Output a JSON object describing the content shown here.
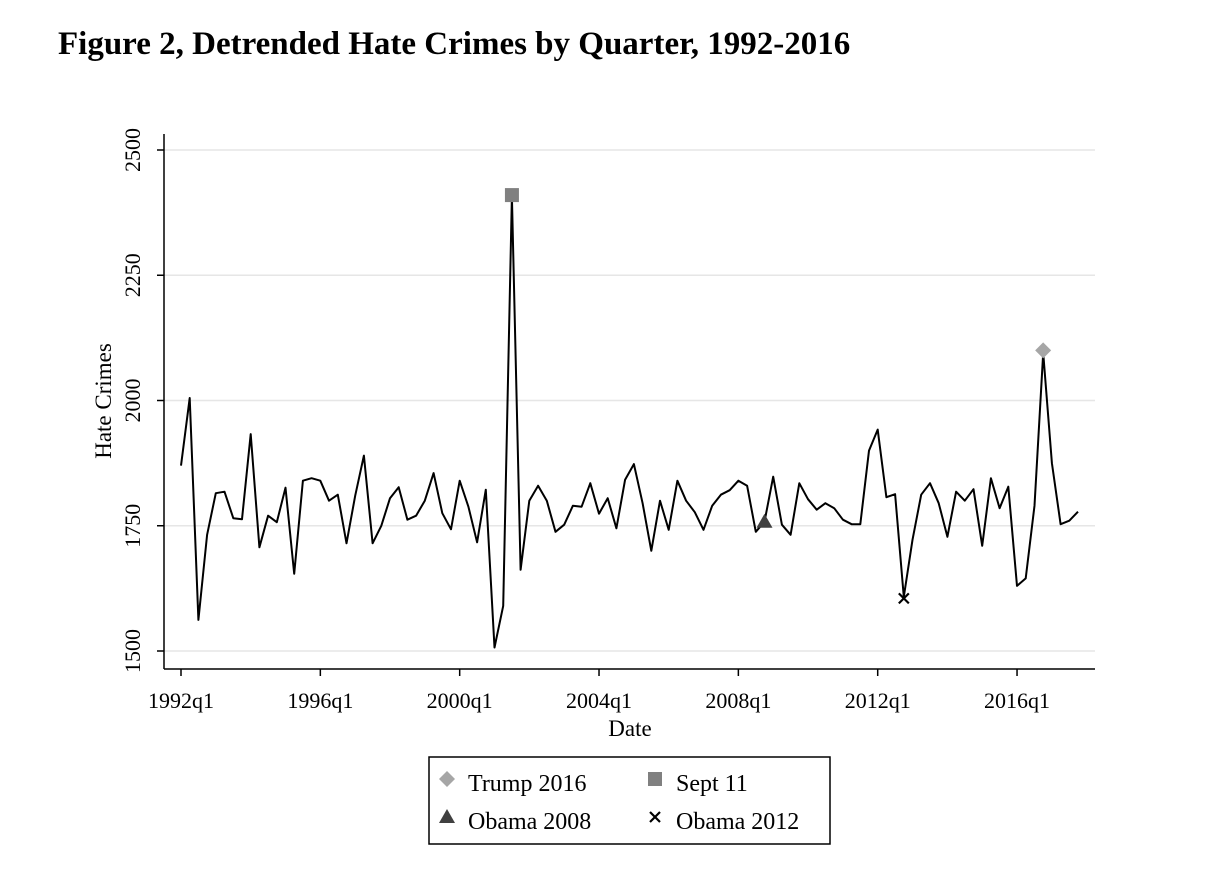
{
  "figure": {
    "title": "Figure 2, Detrended Hate Crimes by Quarter, 1992-2016"
  },
  "chart_data": {
    "type": "line",
    "title": "Figure 2, Detrended Hate Crimes by Quarter, 1992-2016",
    "xlabel": "Date",
    "ylabel": "Hate Crimes",
    "ylim": [
      1500,
      2500
    ],
    "y_ticks": [
      1500,
      1750,
      2000,
      2250,
      2500
    ],
    "x_ticks": [
      "1992q1",
      "1996q1",
      "2000q1",
      "2004q1",
      "2008q1",
      "2012q1",
      "2016q1"
    ],
    "grid": true,
    "legend_position": "bottom",
    "x": [
      "1992q1",
      "1992q2",
      "1992q3",
      "1992q4",
      "1993q1",
      "1993q2",
      "1993q3",
      "1993q4",
      "1994q1",
      "1994q2",
      "1994q3",
      "1994q4",
      "1995q1",
      "1995q2",
      "1995q3",
      "1995q4",
      "1996q1",
      "1996q2",
      "1996q3",
      "1996q4",
      "1997q1",
      "1997q2",
      "1997q3",
      "1997q4",
      "1998q1",
      "1998q2",
      "1998q3",
      "1998q4",
      "1999q1",
      "1999q2",
      "1999q3",
      "1999q4",
      "2000q1",
      "2000q2",
      "2000q3",
      "2000q4",
      "2001q1",
      "2001q2",
      "2001q3",
      "2001q4",
      "2002q1",
      "2002q2",
      "2002q3",
      "2002q4",
      "2003q1",
      "2003q2",
      "2003q3",
      "2003q4",
      "2004q1",
      "2004q2",
      "2004q3",
      "2004q4",
      "2005q1",
      "2005q2",
      "2005q3",
      "2005q4",
      "2006q1",
      "2006q2",
      "2006q3",
      "2006q4",
      "2007q1",
      "2007q2",
      "2007q3",
      "2007q4",
      "2008q1",
      "2008q2",
      "2008q3",
      "2008q4",
      "2009q1",
      "2009q2",
      "2009q3",
      "2009q4",
      "2010q1",
      "2010q2",
      "2010q3",
      "2010q4",
      "2011q1",
      "2011q2",
      "2011q3",
      "2011q4",
      "2012q1",
      "2012q2",
      "2012q3",
      "2012q4",
      "2013q1",
      "2013q2",
      "2013q3",
      "2013q4",
      "2014q1",
      "2014q2",
      "2014q3",
      "2014q4",
      "2015q1",
      "2015q2",
      "2015q3",
      "2015q4",
      "2016q1",
      "2016q2",
      "2016q3",
      "2016q4",
      "2017q1",
      "2017q2",
      "2017q3",
      "2017q4"
    ],
    "series": [
      {
        "values": [
          1870,
          2005,
          1562,
          1732,
          1815,
          1818,
          1765,
          1763,
          1933,
          1707,
          1770,
          1757,
          1826,
          1654,
          1840,
          1845,
          1840,
          1800,
          1812,
          1715,
          1810,
          1890,
          1715,
          1750,
          1805,
          1827,
          1762,
          1770,
          1800,
          1855,
          1775,
          1743,
          1840,
          1788,
          1717,
          1822,
          1507,
          1590,
          2408,
          1662,
          1800,
          1830,
          1800,
          1738,
          1752,
          1790,
          1788,
          1835,
          1774,
          1805,
          1745,
          1842,
          1873,
          1795,
          1700,
          1800,
          1742,
          1840,
          1800,
          1777,
          1742,
          1790,
          1812,
          1821,
          1840,
          1830,
          1738,
          1758,
          1848,
          1752,
          1732,
          1835,
          1803,
          1782,
          1795,
          1785,
          1762,
          1753,
          1753,
          1900,
          1942,
          1807,
          1813,
          1608,
          1722,
          1812,
          1835,
          1795,
          1728,
          1818,
          1800,
          1823,
          1710,
          1845,
          1785,
          1828,
          1630,
          1645,
          1790,
          2095,
          1875,
          1753,
          1760,
          1778
        ]
      }
    ],
    "markers": [
      {
        "label": "Trump 2016",
        "x": "2016q4",
        "y": 2100,
        "shape": "diamond",
        "color": "#a6a6a6"
      },
      {
        "label": "Sept 11",
        "x": "2001q3",
        "y": 2410,
        "shape": "square",
        "color": "#808080"
      },
      {
        "label": "Obama 2008",
        "x": "2008q4",
        "y": 1758,
        "shape": "triangle",
        "color": "#404040"
      },
      {
        "label": "Obama 2012",
        "x": "2012q4",
        "y": 1605,
        "shape": "x",
        "color": "#000000"
      }
    ]
  }
}
